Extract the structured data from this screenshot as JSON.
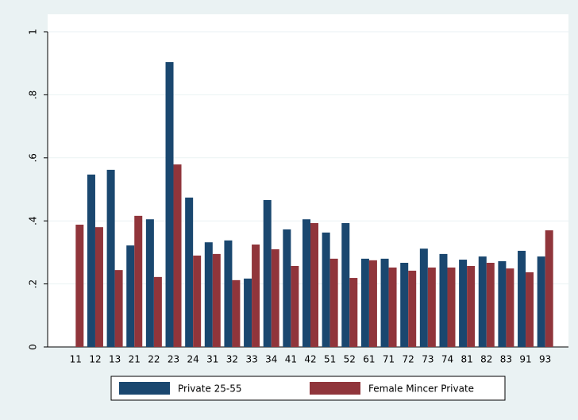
{
  "chart_data": {
    "type": "bar",
    "categories": [
      "11",
      "12",
      "13",
      "21",
      "22",
      "23",
      "24",
      "31",
      "32",
      "33",
      "34",
      "41",
      "42",
      "51",
      "52",
      "61",
      "71",
      "72",
      "73",
      "74",
      "81",
      "82",
      "83",
      "91",
      "93"
    ],
    "series": [
      {
        "name": "Private 25-55",
        "color": "#1a476f",
        "values": [
          null,
          0.547,
          0.562,
          0.322,
          0.405,
          0.904,
          0.474,
          0.332,
          0.338,
          0.217,
          0.466,
          0.373,
          0.405,
          0.363,
          0.393,
          0.28,
          0.28,
          0.267,
          0.312,
          0.295,
          0.277,
          0.287,
          0.272,
          0.305,
          0.287
        ]
      },
      {
        "name": "Female Mincer Private",
        "color": "#90353b",
        "values": [
          0.388,
          0.38,
          0.244,
          0.416,
          0.222,
          0.579,
          0.29,
          0.295,
          0.212,
          0.325,
          0.31,
          0.257,
          0.393,
          0.28,
          0.219,
          0.275,
          0.252,
          0.242,
          0.252,
          0.252,
          0.257,
          0.267,
          0.249,
          0.237,
          0.37
        ]
      }
    ],
    "ylim": [
      0,
      1
    ],
    "yticks": [
      0,
      {
        "value": 0.2,
        "label": ".2"
      },
      {
        "value": 0.4,
        "label": ".4"
      },
      {
        "value": 0.6,
        "label": ".6"
      },
      {
        "value": 0.8,
        "label": ".8"
      },
      1
    ],
    "grid": true,
    "legend": "bottom"
  }
}
